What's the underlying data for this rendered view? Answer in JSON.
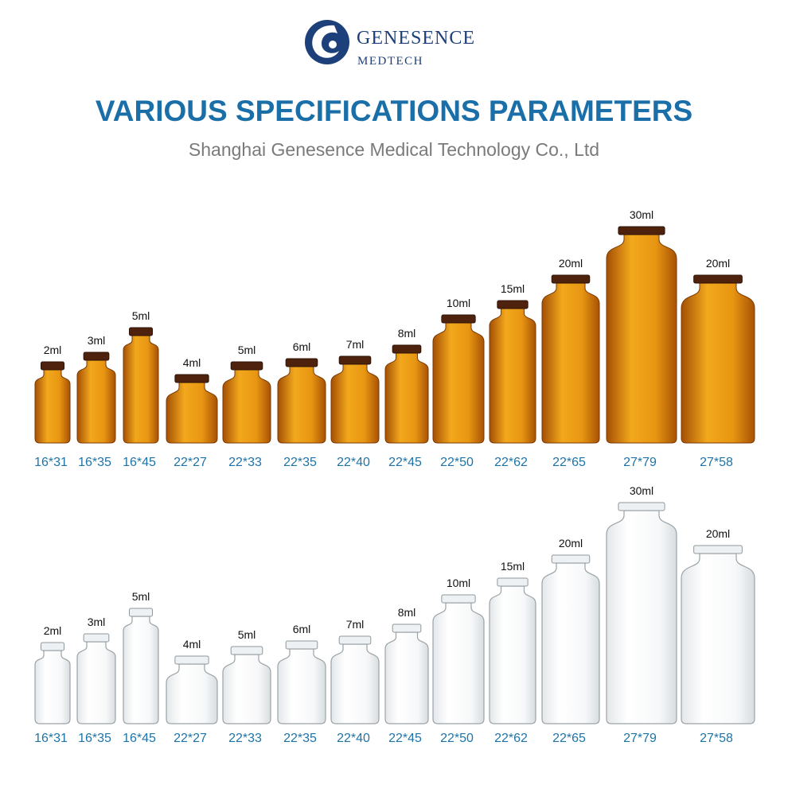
{
  "header": {
    "brand": "GENESENCE",
    "sub_brand": "MEDTECH",
    "title": "VARIOUS SPECIFICATIONS PARAMETERS",
    "subtitle": "Shanghai Genesence Medical Technology Co., Ltd"
  },
  "rows": [
    {
      "vials": [
        {
          "capacity": "2ml",
          "size": "16*31"
        },
        {
          "capacity": "3ml",
          "size": "16*35"
        },
        {
          "capacity": "5ml",
          "size": "16*45"
        },
        {
          "capacity": "4ml",
          "size": "22*27"
        },
        {
          "capacity": "5ml",
          "size": "22*33"
        },
        {
          "capacity": "6ml",
          "size": "22*35"
        },
        {
          "capacity": "7ml",
          "size": "22*40"
        },
        {
          "capacity": "8ml",
          "size": "22*45"
        },
        {
          "capacity": "10ml",
          "size": "22*50"
        },
        {
          "capacity": "15ml",
          "size": "22*62"
        },
        {
          "capacity": "20ml",
          "size": "22*65"
        },
        {
          "capacity": "30ml",
          "size": "27*79"
        },
        {
          "capacity": "20ml",
          "size": "27*58"
        }
      ]
    },
    {
      "vials": [
        {
          "capacity": "2ml",
          "size": "16*31"
        },
        {
          "capacity": "3ml",
          "size": "16*35"
        },
        {
          "capacity": "5ml",
          "size": "16*45"
        },
        {
          "capacity": "4ml",
          "size": "22*27"
        },
        {
          "capacity": "5ml",
          "size": "22*33"
        },
        {
          "capacity": "6ml",
          "size": "22*35"
        },
        {
          "capacity": "7ml",
          "size": "22*40"
        },
        {
          "capacity": "8ml",
          "size": "22*45"
        },
        {
          "capacity": "10ml",
          "size": "22*50"
        },
        {
          "capacity": "15ml",
          "size": "22*62"
        },
        {
          "capacity": "20ml",
          "size": "22*65"
        },
        {
          "capacity": "30ml",
          "size": "27*79"
        },
        {
          "capacity": "20ml",
          "size": "27*58"
        }
      ]
    }
  ]
}
